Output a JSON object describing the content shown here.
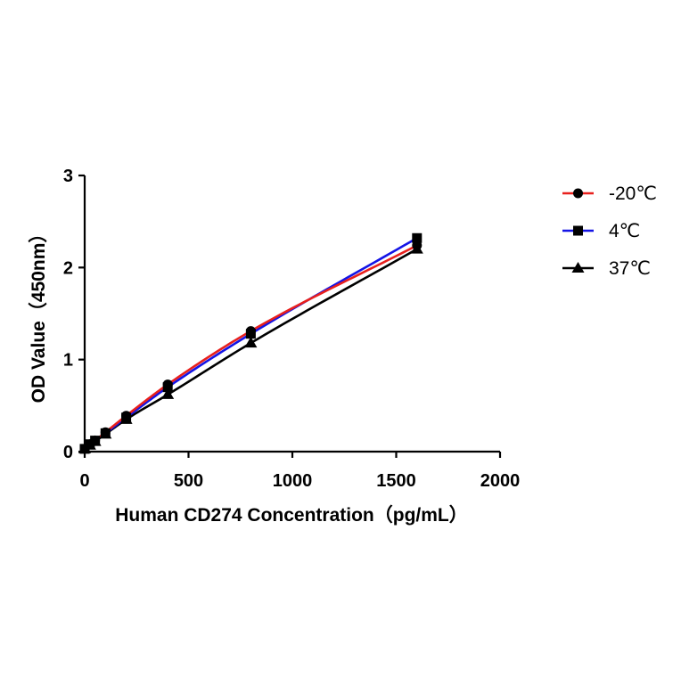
{
  "chart_data": {
    "type": "line",
    "title": "",
    "xlabel": "Human CD274 Concentration（pg/mL）",
    "ylabel": "OD Value（450nm）",
    "xlim": [
      0,
      2000
    ],
    "ylim": [
      0,
      3
    ],
    "xticks": [
      0,
      500,
      1000,
      1500,
      2000
    ],
    "yticks": [
      0,
      1,
      2,
      3
    ],
    "xtick_labels": [
      "0",
      "500",
      "1000",
      "1500",
      "2000"
    ],
    "ytick_labels": [
      "0",
      "1",
      "2",
      "3"
    ],
    "grid": false,
    "legend_position": "right",
    "x": [
      0,
      25,
      50,
      100,
      200,
      400,
      800,
      1600
    ],
    "series": [
      {
        "name": "-20℃",
        "color": "#e8201d",
        "marker": "circle",
        "values": [
          0.03,
          0.08,
          0.12,
          0.21,
          0.39,
          0.73,
          1.31,
          2.24
        ]
      },
      {
        "name": "4℃",
        "color": "#1414e6",
        "marker": "square",
        "values": [
          0.03,
          0.08,
          0.12,
          0.2,
          0.37,
          0.7,
          1.28,
          2.32
        ]
      },
      {
        "name": "37℃",
        "color": "#000000",
        "marker": "triangle",
        "values": [
          0.03,
          0.07,
          0.11,
          0.19,
          0.35,
          0.62,
          1.18,
          2.2
        ]
      }
    ]
  }
}
